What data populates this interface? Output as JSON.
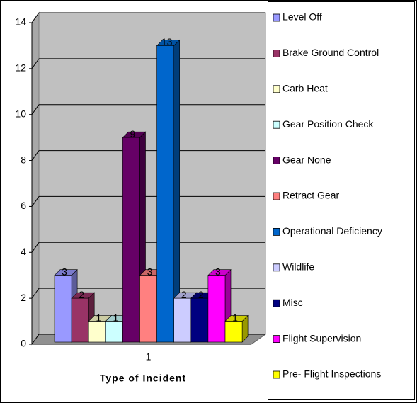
{
  "chart_data": {
    "type": "bar3d",
    "x_label": "Type of Incident",
    "categories": [
      "1"
    ],
    "ylim": [
      0,
      14
    ],
    "yticks": [
      0,
      2,
      4,
      6,
      8,
      10,
      12,
      14
    ],
    "grid": true,
    "legend": "right",
    "series": [
      {
        "name": "Level Off",
        "color": "#9999ff",
        "values": [
          3
        ]
      },
      {
        "name": "Brake Ground Control",
        "color": "#993366",
        "values": [
          2
        ]
      },
      {
        "name": "Carb Heat",
        "color": "#ffffcc",
        "values": [
          1
        ]
      },
      {
        "name": "Gear Position Check",
        "color": "#ccffff",
        "values": [
          1
        ]
      },
      {
        "name": "Gear None",
        "color": "#660066",
        "values": [
          9
        ]
      },
      {
        "name": "Retract Gear",
        "color": "#ff8080",
        "values": [
          3
        ]
      },
      {
        "name": "Operational Deficiency",
        "color": "#0066cc",
        "values": [
          13
        ]
      },
      {
        "name": "Wildlife",
        "color": "#ccccff",
        "values": [
          2
        ]
      },
      {
        "name": "Misc",
        "color": "#000080",
        "values": [
          2
        ]
      },
      {
        "name": "Flight Supervision",
        "color": "#ff00ff",
        "values": [
          3
        ]
      },
      {
        "name": "Pre- Flight Inspections",
        "color": "#ffff00",
        "values": [
          1
        ]
      }
    ]
  }
}
